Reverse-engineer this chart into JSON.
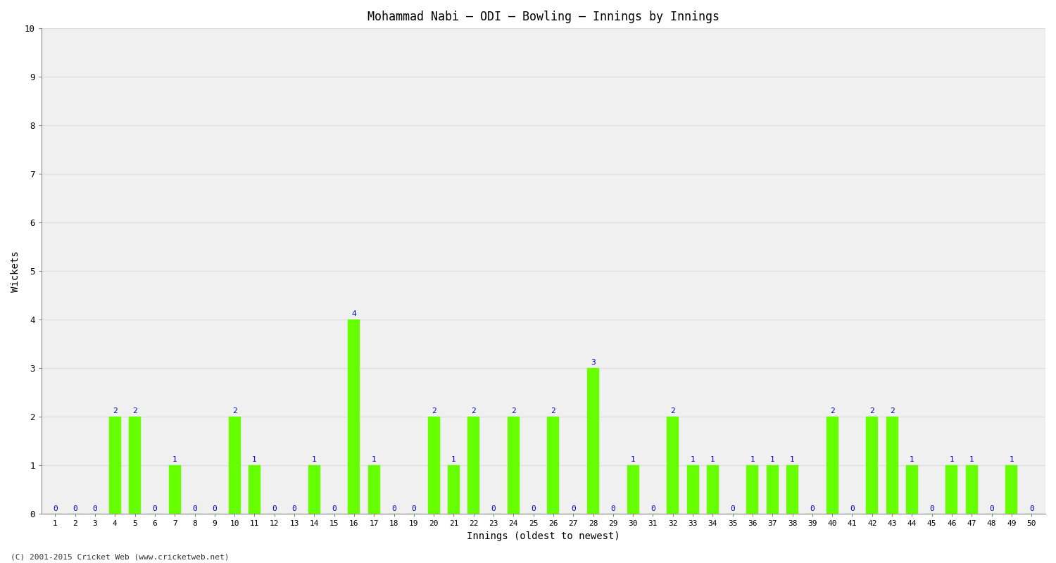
{
  "title": "Mohammad Nabi – ODI – Bowling – Innings by Innings",
  "xlabel": "Innings (oldest to newest)",
  "ylabel": "Wickets",
  "ylim": [
    0,
    10
  ],
  "yticks": [
    0,
    1,
    2,
    3,
    4,
    5,
    6,
    7,
    8,
    9,
    10
  ],
  "bar_color": "#66ff00",
  "label_color": "#0000cc",
  "background_color": "#ffffff",
  "plot_bg_color": "#f0f0f0",
  "grid_color": "#dddddd",
  "footnote": "(C) 2001-2015 Cricket Web (www.cricketweb.net)",
  "innings": [
    1,
    2,
    3,
    4,
    5,
    6,
    7,
    8,
    9,
    10,
    11,
    12,
    13,
    14,
    15,
    16,
    17,
    18,
    19,
    20,
    21,
    22,
    23,
    24,
    25,
    26,
    27,
    28,
    29,
    30,
    31,
    32,
    33,
    34,
    35,
    36,
    37,
    38,
    39,
    40,
    41,
    42,
    43,
    44,
    45,
    46,
    47,
    48,
    49,
    50
  ],
  "wickets": [
    0,
    0,
    0,
    2,
    2,
    0,
    1,
    0,
    0,
    2,
    1,
    0,
    0,
    1,
    0,
    4,
    1,
    0,
    0,
    2,
    1,
    2,
    0,
    2,
    0,
    2,
    0,
    3,
    0,
    1,
    0,
    2,
    1,
    1,
    0,
    1,
    1,
    1,
    0,
    2,
    0,
    2,
    2,
    1,
    0,
    1,
    1,
    0,
    1,
    0
  ],
  "title_fontsize": 12,
  "axis_label_fontsize": 10,
  "tick_fontsize": 9,
  "value_label_fontsize": 8,
  "footnote_fontsize": 8
}
